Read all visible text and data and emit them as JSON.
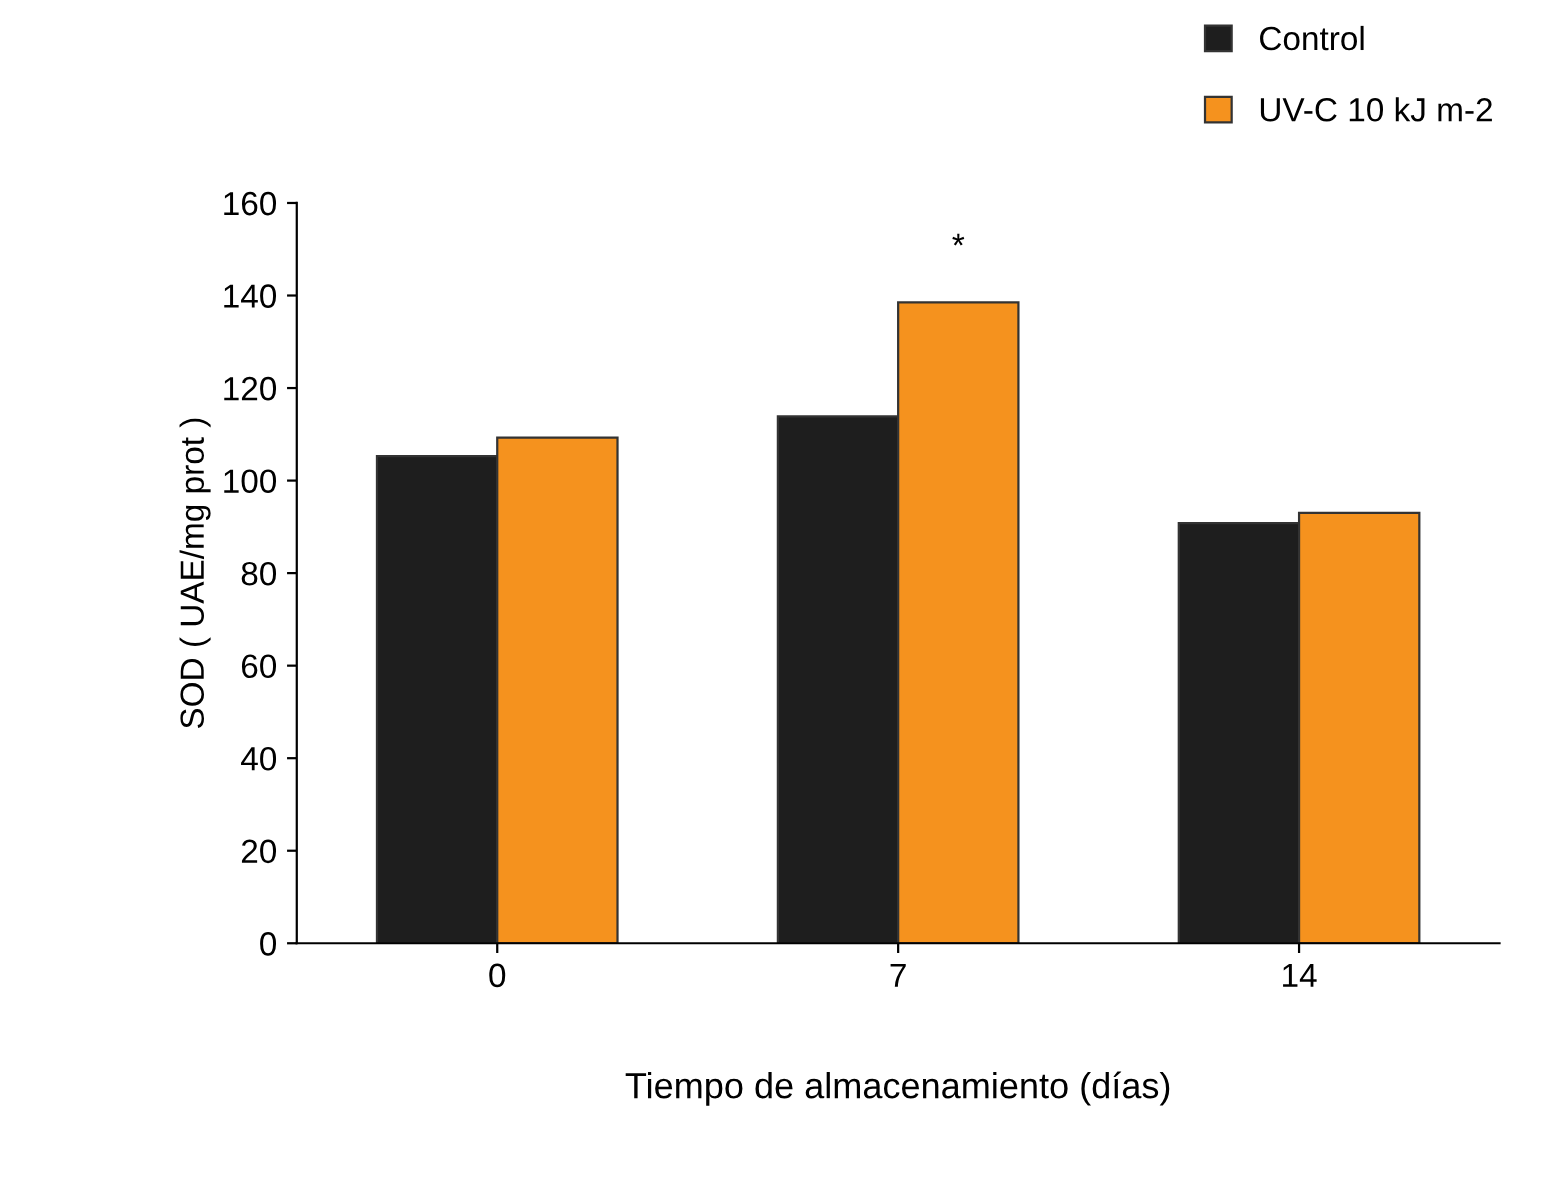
{
  "chart_data": {
    "type": "bar",
    "xlabel": "Tiempo de almacenamiento (días)",
    "ylabel": "SOD ( UAE/mg prot )",
    "categories": [
      "0",
      "7",
      "14"
    ],
    "series": [
      {
        "name": "Control",
        "color": "#1e1e1e",
        "values": [
          105.3,
          113.9,
          90.8
        ]
      },
      {
        "name": "UV-C 10 kJ m-2",
        "color": "#f5921e",
        "values": [
          109.3,
          138.5,
          93.0
        ]
      }
    ],
    "ylim": [
      0,
      160
    ],
    "yticks": [
      0,
      20,
      40,
      60,
      80,
      100,
      120,
      140,
      160
    ],
    "grid": false,
    "legend": "top right",
    "annotations": [
      "*"
    ]
  }
}
